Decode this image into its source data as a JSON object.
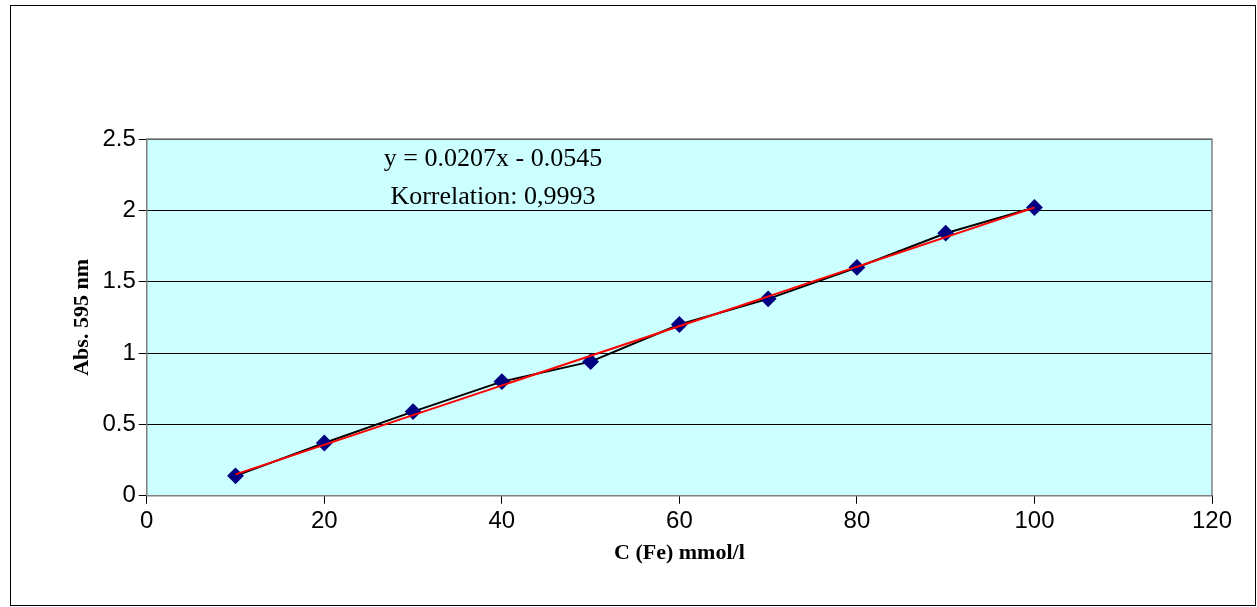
{
  "chart_data": {
    "type": "scatter",
    "xlabel": "C (Fe) mmol/l",
    "ylabel": "Abs. 595 nm",
    "annotations": [
      "y = 0.0207x - 0.0545",
      "Korrelation: 0,9993"
    ],
    "xlim": [
      0,
      120
    ],
    "xticks": [
      0,
      20,
      40,
      60,
      80,
      100,
      120
    ],
    "ylim": [
      0,
      2.5
    ],
    "yticks": [
      0,
      0.5,
      1,
      1.5,
      2,
      2.5
    ],
    "grid": "y",
    "legend": false,
    "series": [
      {
        "type": "line",
        "color": "#000080",
        "marker": "diamond",
        "x": [
          10,
          20,
          30,
          40,
          50,
          60,
          70,
          80,
          90,
          100
        ],
        "values": [
          0.14,
          0.37,
          0.59,
          0.8,
          0.94,
          1.2,
          1.38,
          1.6,
          1.84,
          2.02
        ]
      },
      {
        "type": "line",
        "color": "#ff0000",
        "marker": "none",
        "x": [
          10,
          100
        ],
        "values": [
          0.15,
          2.02
        ]
      }
    ]
  }
}
